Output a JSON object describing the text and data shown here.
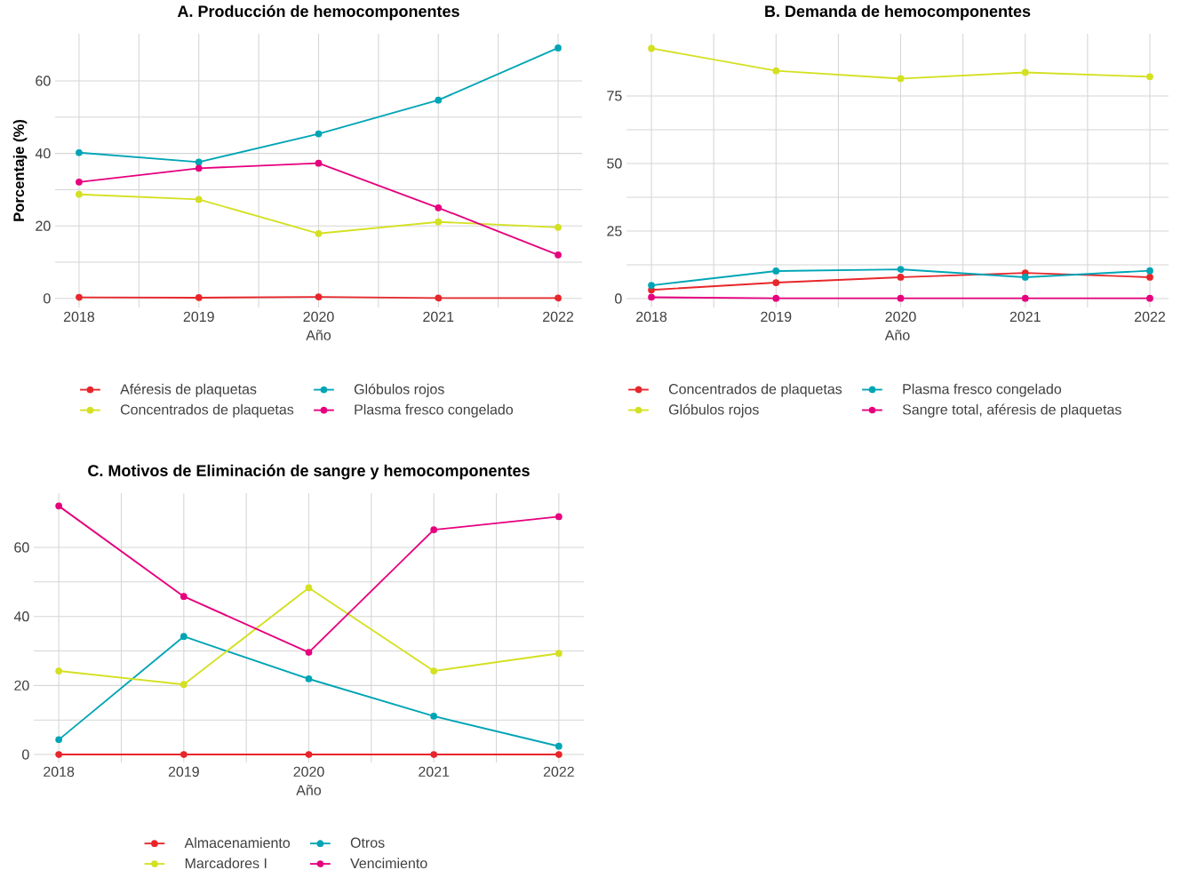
{
  "chart_data": [
    {
      "type": "line",
      "title": "A. Producción de hemocomponentes",
      "xlabel": "Año",
      "ylabel": "Porcentaje (%)",
      "x": [
        2018,
        2019,
        2020,
        2021,
        2022
      ],
      "xlim": [
        2017.8,
        2022.2
      ],
      "ylim": [
        -2.5,
        73
      ],
      "xticks": [
        2018,
        2019,
        2020,
        2021,
        2022
      ],
      "yticks": [
        0,
        20,
        40,
        60
      ],
      "grid": true,
      "legend": "bottom",
      "marker": "circle",
      "line_style": "solid",
      "series": [
        {
          "name": "Aféresis de plaquetas",
          "color": "#e8262b",
          "values": [
            0.3,
            0.2,
            0.4,
            0.1,
            0.1
          ]
        },
        {
          "name": "Concentrados de plaquetas",
          "color": "#d4e021",
          "values": [
            28.7,
            27.3,
            17.9,
            21.1,
            19.6
          ]
        },
        {
          "name": "Glóbulos rojos",
          "color": "#00a5b5",
          "values": [
            40.2,
            37.6,
            45.4,
            54.7,
            69.1
          ]
        },
        {
          "name": "Plasma fresco congelado",
          "color": "#e6007e",
          "values": [
            32.1,
            35.9,
            37.3,
            25.0,
            12.0
          ]
        }
      ]
    },
    {
      "type": "line",
      "title": "B. Demanda de hemocomponentes",
      "xlabel": "Año",
      "x": [
        2018,
        2019,
        2020,
        2021,
        2022
      ],
      "xlim": [
        2017.8,
        2022.15
      ],
      "ylim": [
        -3.3,
        98
      ],
      "xticks": [
        2018,
        2019,
        2020,
        2021,
        2022
      ],
      "yticks": [
        0,
        25,
        50,
        75
      ],
      "grid": true,
      "legend": "bottom",
      "marker": "circle",
      "line_style": "solid",
      "series": [
        {
          "name": "Concentrados de plaquetas",
          "color": "#e8262b",
          "values": [
            3.2,
            5.9,
            7.9,
            9.5,
            7.9
          ]
        },
        {
          "name": "Glóbulos rojos",
          "color": "#d4e021",
          "values": [
            92.6,
            84.3,
            81.4,
            83.7,
            82.1
          ]
        },
        {
          "name": "Plasma fresco congelado",
          "color": "#00a5b5",
          "values": [
            4.9,
            10.2,
            10.8,
            7.9,
            10.3
          ]
        },
        {
          "name": "Sangre total, aféresis de plaquetas",
          "color": "#e6007e",
          "values": [
            0.5,
            0.1,
            0.1,
            0.1,
            0.1
          ]
        }
      ]
    },
    {
      "type": "line",
      "title": "C. Motivos de Eliminación de sangre y hemocomponentes",
      "xlabel": "Año",
      "x": [
        2018,
        2019,
        2020,
        2021,
        2022
      ],
      "xlim": [
        2017.8,
        2022.2
      ],
      "ylim": [
        -2.3,
        75.7
      ],
      "xticks": [
        2018,
        2019,
        2020,
        2021,
        2022
      ],
      "yticks": [
        0,
        20,
        40,
        60
      ],
      "grid": true,
      "legend": "bottom",
      "marker": "circle",
      "line_style": "solid",
      "series": [
        {
          "name": "Almacenamiento",
          "color": "#e8262b",
          "values": [
            0,
            0,
            0,
            0,
            0
          ]
        },
        {
          "name": "Marcadores I",
          "color": "#d4e021",
          "values": [
            24.2,
            20.3,
            48.3,
            24.2,
            29.3
          ]
        },
        {
          "name": "Otros",
          "color": "#00a5b5",
          "values": [
            4.3,
            34.2,
            21.9,
            11.1,
            2.4
          ]
        },
        {
          "name": "Vencimiento",
          "color": "#e6007e",
          "values": [
            72.0,
            45.8,
            29.6,
            65.1,
            68.9
          ]
        }
      ]
    }
  ]
}
